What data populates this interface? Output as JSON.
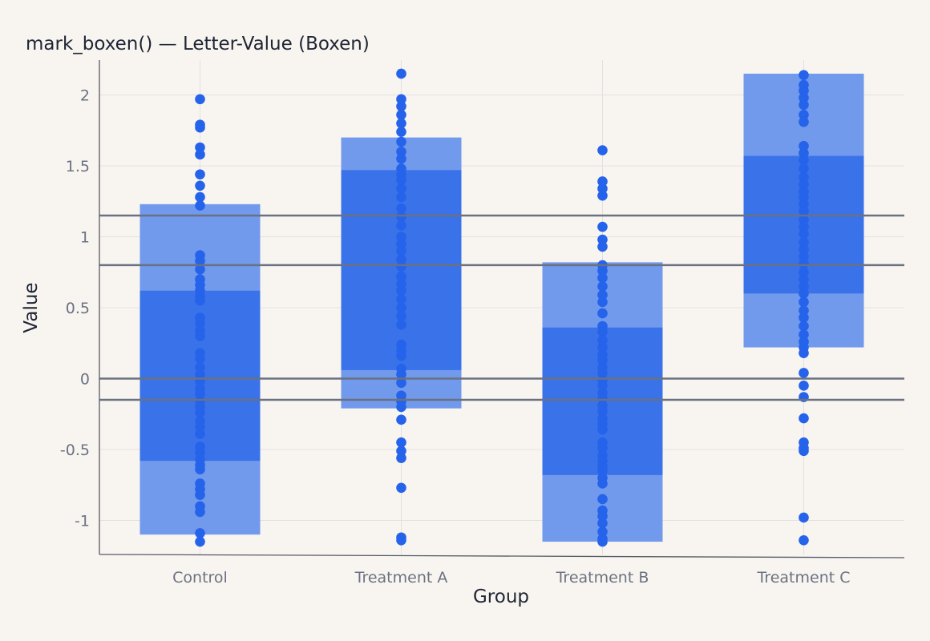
{
  "chart_data": {
    "type": "boxen",
    "title": "mark_boxen() — Letter-Value (Boxen)",
    "xlabel": "Group",
    "ylabel": "Value",
    "ylim": [
      -1.25,
      2.25
    ],
    "yticks": [
      -1,
      -0.5,
      0,
      0.5,
      1,
      1.5,
      2
    ],
    "ytick_labels": [
      "-1",
      "-0.5",
      "0",
      "0.5",
      "1",
      "1.5",
      "2"
    ],
    "grid": true,
    "categories": [
      "Control",
      "Treatment A",
      "Treatment B",
      "Treatment C"
    ],
    "colors": {
      "outer_box": "#7199ec",
      "inner_box": "#3a72e9",
      "points": "#2563eb",
      "ref_lines": "#6b7180"
    },
    "reference_lines": [
      1.15,
      0.8,
      0,
      -0.15
    ],
    "boxes": [
      {
        "group": "Control",
        "outer": [
          -1.1,
          1.23
        ],
        "inner": [
          -0.58,
          0.62
        ]
      },
      {
        "group": "Treatment A",
        "outer": [
          -0.21,
          1.7
        ],
        "inner": [
          0.06,
          1.47
        ]
      },
      {
        "group": "Treatment B",
        "outer": [
          -1.15,
          0.82
        ],
        "inner": [
          -0.68,
          0.36
        ]
      },
      {
        "group": "Treatment C",
        "outer": [
          0.22,
          2.15
        ],
        "inner": [
          0.6,
          1.57
        ]
      }
    ],
    "points": [
      {
        "group": "Control",
        "values": [
          1.97,
          1.79,
          1.77,
          1.63,
          1.58,
          1.44,
          1.36,
          1.28,
          1.22,
          0.87,
          0.83,
          0.77,
          0.7,
          0.66,
          0.62,
          0.58,
          0.55,
          0.43,
          0.39,
          0.34,
          0.3,
          0.18,
          0.14,
          0.08,
          0.03,
          -0.02,
          -0.07,
          -0.11,
          -0.16,
          -0.2,
          -0.24,
          -0.3,
          -0.34,
          -0.39,
          -0.48,
          -0.52,
          -0.57,
          -0.61,
          -0.64,
          -0.74,
          -0.78,
          -0.82,
          -0.9,
          -0.94,
          -1.09,
          -1.15
        ]
      },
      {
        "group": "Treatment A",
        "values": [
          2.15,
          1.97,
          1.92,
          1.86,
          1.8,
          1.74,
          1.67,
          1.6,
          1.55,
          1.48,
          1.44,
          1.4,
          1.34,
          1.28,
          1.2,
          1.14,
          1.08,
          1.0,
          0.95,
          0.9,
          0.84,
          0.79,
          0.72,
          0.67,
          0.62,
          0.56,
          0.5,
          0.44,
          0.38,
          0.24,
          0.2,
          0.16,
          0.07,
          0.03,
          -0.03,
          -0.12,
          -0.16,
          -0.2,
          -0.29,
          -0.45,
          -0.51,
          -0.56,
          -0.77,
          -1.12,
          -1.14
        ]
      },
      {
        "group": "Treatment B",
        "values": [
          1.61,
          1.39,
          1.34,
          1.29,
          1.07,
          0.98,
          0.93,
          0.8,
          0.76,
          0.71,
          0.65,
          0.59,
          0.54,
          0.46,
          0.37,
          0.33,
          0.27,
          0.22,
          0.17,
          0.13,
          0.08,
          0.04,
          -0.01,
          -0.05,
          -0.1,
          -0.14,
          -0.19,
          -0.23,
          -0.28,
          -0.32,
          -0.36,
          -0.45,
          -0.49,
          -0.54,
          -0.58,
          -0.62,
          -0.65,
          -0.7,
          -0.74,
          -0.85,
          -0.93,
          -0.97,
          -1.02,
          -1.08,
          -1.13,
          -1.15
        ]
      },
      {
        "group": "Treatment C",
        "values": [
          2.14,
          2.07,
          2.03,
          1.98,
          1.93,
          1.86,
          1.81,
          1.64,
          1.59,
          1.54,
          1.48,
          1.42,
          1.37,
          1.32,
          1.28,
          1.23,
          1.18,
          1.12,
          1.07,
          1.02,
          0.96,
          0.91,
          0.86,
          0.81,
          0.75,
          0.7,
          0.65,
          0.6,
          0.54,
          0.48,
          0.43,
          0.37,
          0.31,
          0.26,
          0.22,
          0.18,
          0.04,
          -0.05,
          -0.13,
          -0.28,
          -0.45,
          -0.49,
          -0.51,
          -0.98,
          -1.14
        ]
      }
    ]
  }
}
